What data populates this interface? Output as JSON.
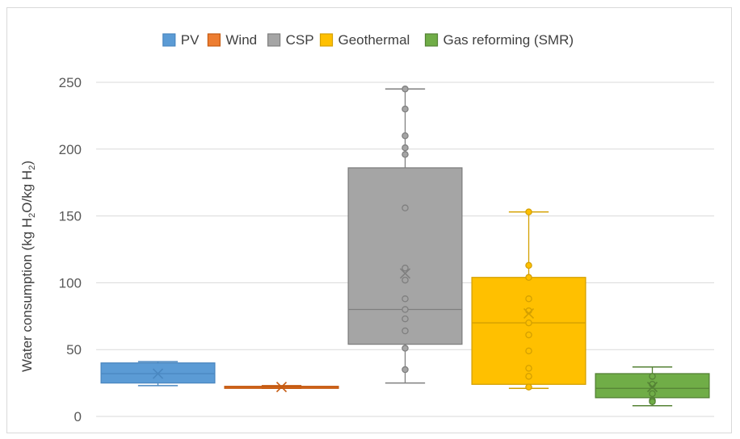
{
  "chart_data": {
    "type": "boxplot",
    "title": "",
    "ylabel": "Water consumption (kg H2O/kg H2)",
    "ylabel_parts": {
      "a": "Water consumption (kg H",
      "sub1": "2",
      "b": "O/kg H",
      "sub2": "2",
      "c": ")"
    },
    "ylim": [
      0,
      250
    ],
    "yticks": [
      0,
      50,
      100,
      150,
      200,
      250
    ],
    "grid": true,
    "legend_position": "top",
    "series": [
      {
        "name": "PV",
        "color": "#5b9bd5",
        "dark": "#4a87c0",
        "min": 23,
        "q1": 25,
        "median": 32,
        "q3": 40,
        "max": 41,
        "mean": 32,
        "points": []
      },
      {
        "name": "Wind",
        "color": "#ed7d31",
        "dark": "#c55a11",
        "min": 21,
        "q1": 21,
        "median": 22,
        "q3": 22.5,
        "max": 23,
        "mean": 22,
        "points": []
      },
      {
        "name": "CSP",
        "color": "#a5a5a5",
        "dark": "#7f7f7f",
        "min": 25,
        "q1": 54,
        "median": 80,
        "q3": 186,
        "max": 245,
        "mean": 107,
        "points": [
          245,
          230,
          210,
          201,
          196,
          156,
          111,
          102,
          88,
          80,
          73,
          64,
          51,
          35
        ]
      },
      {
        "name": "Geothermal",
        "color": "#ffc000",
        "dark": "#d4a000",
        "min": 21,
        "q1": 24,
        "median": 70,
        "q3": 104,
        "max": 153,
        "mean": 77,
        "points": [
          153,
          113,
          104,
          88,
          79,
          70,
          61,
          49,
          36,
          30,
          22
        ]
      },
      {
        "name": "Gas reforming (SMR)",
        "color": "#70ad47",
        "dark": "#548235",
        "min": 8,
        "q1": 14,
        "median": 21,
        "q3": 32,
        "max": 37,
        "mean": 22,
        "points": [
          30,
          24,
          17,
          12,
          11
        ]
      }
    ]
  }
}
